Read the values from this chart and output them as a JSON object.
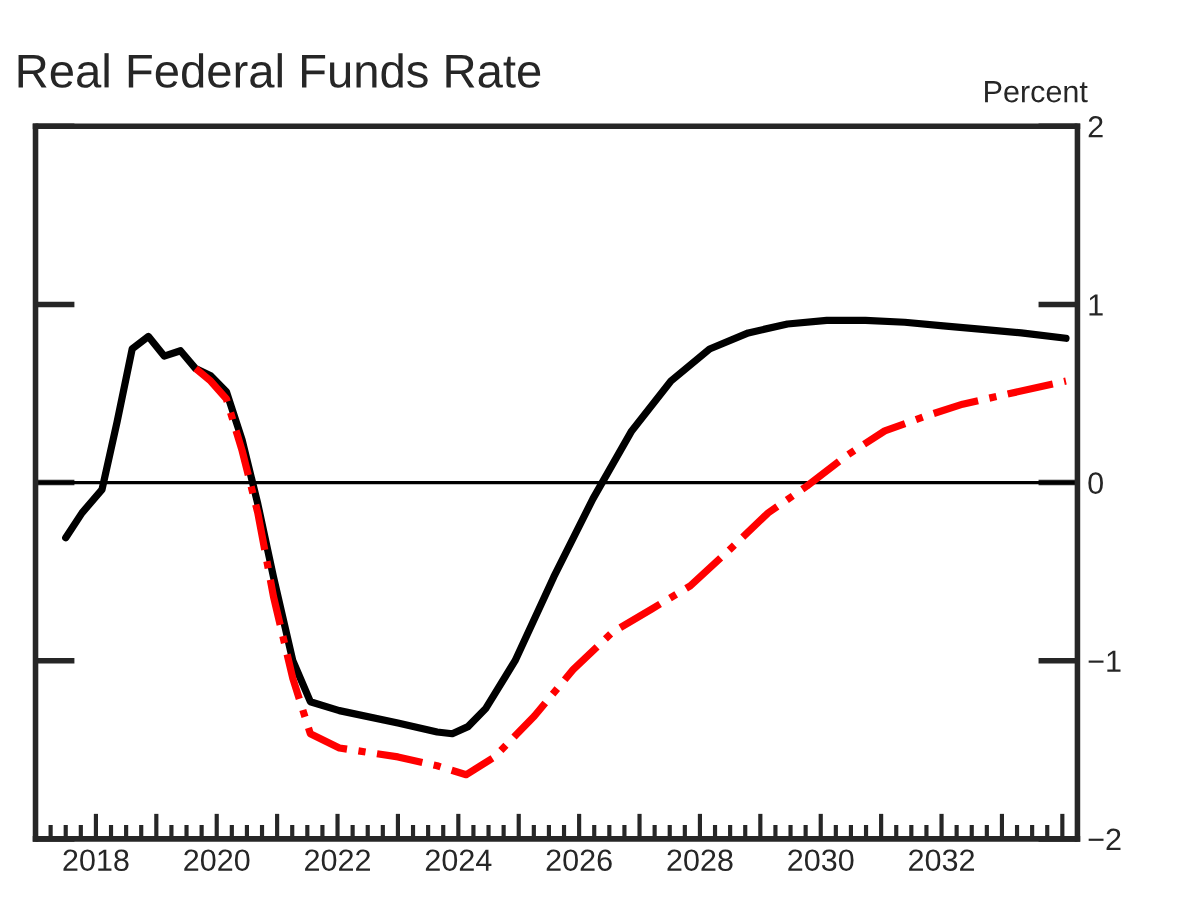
{
  "chart_data": {
    "type": "line",
    "title": "Real Federal Funds Rate",
    "ylabel": "Percent",
    "series": [
      {
        "color": "#000000",
        "line_style": "solid",
        "x": [
          2017.5,
          2017.77,
          2018.1,
          2018.35,
          2018.6,
          2018.87,
          2019.13,
          2019.4,
          2019.65,
          2019.9,
          2020.16,
          2020.42,
          2020.68,
          2020.94,
          2021.26,
          2021.55,
          2022.03,
          2023.0,
          2023.65,
          2023.9,
          2024.16,
          2024.45,
          2024.94,
          2025.58,
          2026.23,
          2026.87,
          2027.52,
          2028.16,
          2028.8,
          2029.45,
          2030.1,
          2030.74,
          2031.39,
          2032.03,
          2032.68,
          2033.32,
          2034.06
        ],
        "values": [
          -0.31,
          -0.17,
          -0.04,
          0.34,
          0.75,
          0.82,
          0.71,
          0.74,
          0.64,
          0.6,
          0.51,
          0.24,
          -0.12,
          -0.53,
          -1.0,
          -1.23,
          -1.28,
          -1.35,
          -1.4,
          -1.41,
          -1.37,
          -1.27,
          -1.0,
          -0.53,
          -0.09,
          0.29,
          0.57,
          0.75,
          0.84,
          0.89,
          0.91,
          0.91,
          0.9,
          0.88,
          0.86,
          0.84,
          0.81
        ]
      },
      {
        "color": "#ff0000",
        "line_style": "dashdot",
        "x": [
          2019.65,
          2019.9,
          2020.16,
          2020.42,
          2020.68,
          2020.94,
          2021.26,
          2021.55,
          2022.03,
          2023.0,
          2023.65,
          2024.13,
          2024.6,
          2025.26,
          2025.9,
          2026.55,
          2027.2,
          2027.84,
          2028.48,
          2029.13,
          2029.77,
          2030.42,
          2031.06,
          2031.71,
          2032.35,
          2033.0,
          2034.06
        ],
        "values": [
          0.64,
          0.57,
          0.47,
          0.18,
          -0.17,
          -0.64,
          -1.1,
          -1.41,
          -1.49,
          -1.54,
          -1.59,
          -1.64,
          -1.54,
          -1.31,
          -1.05,
          -0.84,
          -0.71,
          -0.58,
          -0.38,
          -0.17,
          -0.02,
          0.15,
          0.29,
          0.37,
          0.44,
          0.49,
          0.57
        ]
      }
    ],
    "xlim": [
      2017,
      2034.25
    ],
    "xticks": [
      2018,
      {
        "value": 2019,
        "label": null
      },
      2020,
      {
        "value": 2021,
        "label": null
      },
      2022,
      {
        "value": 2023,
        "label": null
      },
      2024,
      {
        "value": 2025,
        "label": null
      },
      2026,
      {
        "value": 2027,
        "label": null
      },
      2028,
      {
        "value": 2029,
        "label": null
      },
      2030,
      {
        "value": 2031,
        "label": null
      },
      2032,
      {
        "value": 2033,
        "label": null
      },
      {
        "value": 2034,
        "label": null
      }
    ],
    "ylim": [
      -2,
      2
    ],
    "yticks": [
      {
        "value": -2,
        "label": "−2"
      },
      {
        "value": -1,
        "label": "−1"
      },
      0,
      1,
      2
    ],
    "ref_lines": [
      {
        "axis": "y",
        "value": 0,
        "color": "#000000"
      }
    ],
    "grid": false,
    "legend": false,
    "marker": "none"
  }
}
